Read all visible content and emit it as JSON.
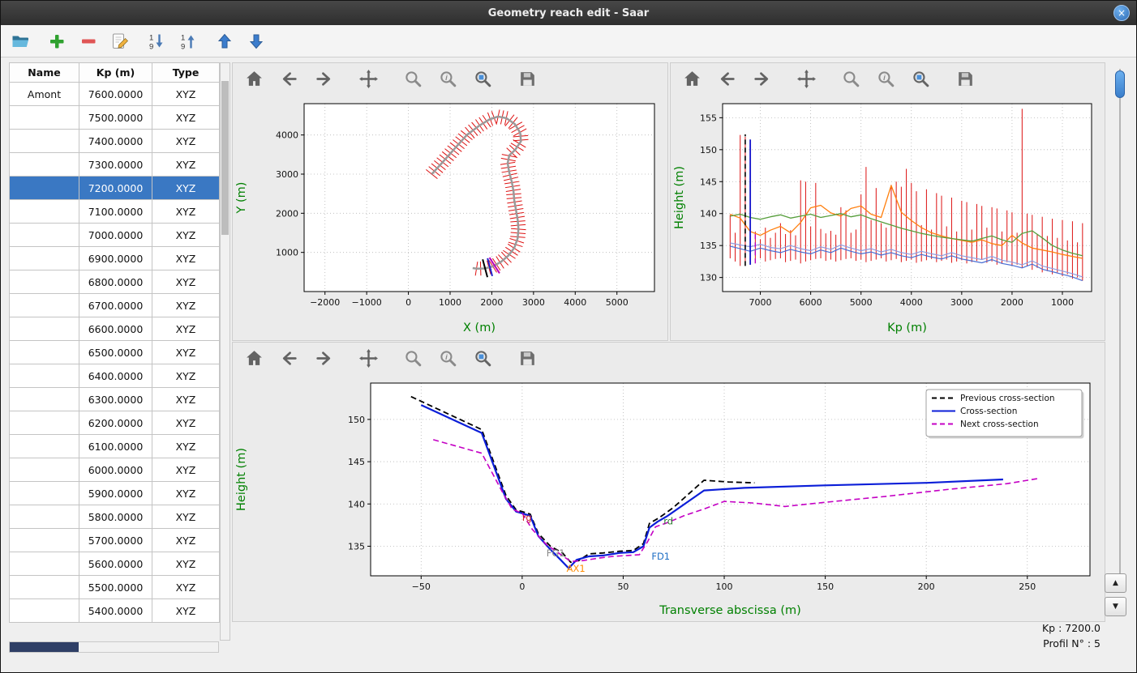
{
  "window": {
    "title": "Geometry reach edit - Saar",
    "close_glyph": "×"
  },
  "app_toolbar": {
    "icons": [
      "open-folder-icon",
      "add-icon",
      "remove-icon",
      "edit-icon",
      "sort-descending-icon",
      "sort-ascending-icon",
      "move-up-icon",
      "move-down-icon"
    ]
  },
  "plot_toolbar": {
    "icons": [
      "home-icon",
      "back-icon",
      "forward-icon",
      "pan-icon",
      "zoom-icon",
      "zoom-info-icon",
      "zoom-rect-icon",
      "save-icon"
    ]
  },
  "table": {
    "columns": [
      "Name",
      "Kp (m)",
      "Type"
    ],
    "selected_index": 4,
    "rows": [
      {
        "name": "Amont",
        "kp": "7600.0000",
        "type": "XYZ"
      },
      {
        "name": "",
        "kp": "7500.0000",
        "type": "XYZ"
      },
      {
        "name": "",
        "kp": "7400.0000",
        "type": "XYZ"
      },
      {
        "name": "",
        "kp": "7300.0000",
        "type": "XYZ"
      },
      {
        "name": "",
        "kp": "7200.0000",
        "type": "XYZ"
      },
      {
        "name": "",
        "kp": "7100.0000",
        "type": "XYZ"
      },
      {
        "name": "",
        "kp": "7000.0000",
        "type": "XYZ"
      },
      {
        "name": "",
        "kp": "6900.0000",
        "type": "XYZ"
      },
      {
        "name": "",
        "kp": "6800.0000",
        "type": "XYZ"
      },
      {
        "name": "",
        "kp": "6700.0000",
        "type": "XYZ"
      },
      {
        "name": "",
        "kp": "6600.0000",
        "type": "XYZ"
      },
      {
        "name": "",
        "kp": "6500.0000",
        "type": "XYZ"
      },
      {
        "name": "",
        "kp": "6400.0000",
        "type": "XYZ"
      },
      {
        "name": "",
        "kp": "6300.0000",
        "type": "XYZ"
      },
      {
        "name": "",
        "kp": "6200.0000",
        "type": "XYZ"
      },
      {
        "name": "",
        "kp": "6100.0000",
        "type": "XYZ"
      },
      {
        "name": "",
        "kp": "6000.0000",
        "type": "XYZ"
      },
      {
        "name": "",
        "kp": "5900.0000",
        "type": "XYZ"
      },
      {
        "name": "",
        "kp": "5800.0000",
        "type": "XYZ"
      },
      {
        "name": "",
        "kp": "5700.0000",
        "type": "XYZ"
      },
      {
        "name": "",
        "kp": "5600.0000",
        "type": "XYZ"
      },
      {
        "name": "",
        "kp": "5500.0000",
        "type": "XYZ"
      },
      {
        "name": "",
        "kp": "5400.0000",
        "type": "XYZ"
      }
    ]
  },
  "status": {
    "kp_label": "Kp : 7200.0",
    "profil_label": "Profil N° : 5"
  },
  "chart_data": [
    {
      "id": "plan",
      "type": "line",
      "xlabel": "X (m)",
      "ylabel": "Y (m)",
      "label_color": "#008000",
      "xlim": [
        -2500,
        5900
      ],
      "ylim": [
        0,
        4800
      ],
      "xticks": [
        -2000,
        -1000,
        0,
        1000,
        2000,
        3000,
        4000,
        5000
      ],
      "yticks": [
        1000,
        2000,
        3000,
        4000
      ],
      "centerline": [
        [
          560,
          3000
        ],
        [
          800,
          3280
        ],
        [
          1100,
          3640
        ],
        [
          1400,
          4000
        ],
        [
          1700,
          4240
        ],
        [
          1950,
          4400
        ],
        [
          2150,
          4470
        ],
        [
          2350,
          4430
        ],
        [
          2550,
          4280
        ],
        [
          2680,
          4060
        ],
        [
          2700,
          3840
        ],
        [
          2560,
          3620
        ],
        [
          2420,
          3480
        ],
        [
          2380,
          3280
        ],
        [
          2420,
          3040
        ],
        [
          2480,
          2800
        ],
        [
          2520,
          2560
        ],
        [
          2540,
          2320
        ],
        [
          2580,
          2080
        ],
        [
          2620,
          1840
        ],
        [
          2640,
          1600
        ],
        [
          2620,
          1360
        ],
        [
          2540,
          1120
        ],
        [
          2400,
          920
        ],
        [
          2220,
          760
        ],
        [
          2020,
          640
        ],
        [
          1820,
          590
        ],
        [
          1640,
          585
        ],
        [
          1540,
          600
        ]
      ],
      "tick_spacing": 100,
      "tick_half_len": 180,
      "tick_color": "#dd1111",
      "line_color": "#9a9a9a",
      "highlights": [
        {
          "from_end": 300,
          "color": "#000000"
        },
        {
          "from_end": 420,
          "color": "#2020cc"
        },
        {
          "from_end": 540,
          "color": "#bb00bb"
        }
      ]
    },
    {
      "id": "profile",
      "type": "line",
      "xlabel": "Kp (m)",
      "ylabel": "Height (m)",
      "label_color": "#008000",
      "xlim": [
        7750,
        420
      ],
      "ylim": [
        127.8,
        157.2
      ],
      "xticks": [
        7000,
        6000,
        5000,
        4000,
        3000,
        2000,
        1000
      ],
      "yticks": [
        130,
        135,
        140,
        145,
        150,
        155
      ],
      "bar_color": "#dd1111",
      "bars": [
        [
          7600,
          133.0,
          139.8
        ],
        [
          7500,
          132.5,
          137.0
        ],
        [
          7400,
          131.8,
          152.3
        ],
        [
          7300,
          131.9,
          152.0
        ],
        [
          7200,
          132.0,
          136.5
        ],
        [
          7100,
          132.8,
          137.2
        ],
        [
          7000,
          133.0,
          136.0
        ],
        [
          6900,
          132.5,
          137.8
        ],
        [
          6800,
          132.7,
          136.2
        ],
        [
          6700,
          132.9,
          137.0
        ],
        [
          6600,
          133.0,
          138.5
        ],
        [
          6500,
          132.4,
          136.8
        ],
        [
          6400,
          132.6,
          137.4
        ],
        [
          6300,
          132.8,
          136.6
        ],
        [
          6200,
          132.2,
          145.2
        ],
        [
          6100,
          132.5,
          145.0
        ],
        [
          6000,
          132.7,
          138.0
        ],
        [
          5900,
          132.9,
          144.8
        ],
        [
          5800,
          133.0,
          137.6
        ],
        [
          5700,
          132.6,
          136.9
        ],
        [
          5600,
          132.8,
          137.3
        ],
        [
          5500,
          132.5,
          136.7
        ],
        [
          5400,
          132.7,
          141.0
        ],
        [
          5300,
          132.9,
          140.5
        ],
        [
          5200,
          133.0,
          137.0
        ],
        [
          5100,
          132.6,
          137.5
        ],
        [
          5000,
          132.8,
          143.0
        ],
        [
          4900,
          132.4,
          147.3
        ],
        [
          4800,
          132.6,
          139.0
        ],
        [
          4700,
          132.8,
          144.0
        ],
        [
          4600,
          133.0,
          138.5
        ],
        [
          4500,
          132.5,
          137.8
        ],
        [
          4400,
          132.7,
          144.5
        ],
        [
          4300,
          132.9,
          145.0
        ],
        [
          4200,
          132.4,
          144.2
        ],
        [
          4100,
          132.6,
          147.0
        ],
        [
          4000,
          132.8,
          144.8
        ],
        [
          3900,
          132.3,
          143.5
        ],
        [
          3800,
          132.5,
          138.2
        ],
        [
          3700,
          132.7,
          143.8
        ],
        [
          3600,
          132.9,
          137.5
        ],
        [
          3500,
          132.4,
          143.2
        ],
        [
          3400,
          132.6,
          142.8
        ],
        [
          3300,
          132.8,
          138.0
        ],
        [
          3200,
          132.3,
          142.5
        ],
        [
          3100,
          132.5,
          137.2
        ],
        [
          3000,
          132.7,
          142.0
        ],
        [
          2900,
          132.2,
          141.8
        ],
        [
          2800,
          132.4,
          137.5
        ],
        [
          2700,
          132.6,
          141.5
        ],
        [
          2600,
          132.8,
          141.2
        ],
        [
          2500,
          132.3,
          137.8
        ],
        [
          2400,
          132.5,
          141.0
        ],
        [
          2300,
          132.0,
          140.8
        ],
        [
          2200,
          132.2,
          137.2
        ],
        [
          2100,
          132.4,
          140.5
        ],
        [
          2000,
          131.8,
          140.2
        ],
        [
          1900,
          132.0,
          137.0
        ],
        [
          1800,
          131.5,
          156.4
        ],
        [
          1700,
          131.8,
          140.0
        ],
        [
          1600,
          131.2,
          139.8
        ],
        [
          1500,
          131.5,
          136.8
        ],
        [
          1400,
          130.8,
          139.5
        ],
        [
          1300,
          131.0,
          136.5
        ],
        [
          1200,
          130.5,
          139.2
        ],
        [
          1100,
          130.8,
          136.2
        ],
        [
          1000,
          130.2,
          139.0
        ],
        [
          900,
          130.5,
          135.8
        ],
        [
          800,
          129.8,
          138.8
        ],
        [
          700,
          130.0,
          135.5
        ],
        [
          600,
          129.5,
          138.5
        ]
      ],
      "x": [
        7600,
        7400,
        7200,
        7000,
        6800,
        6600,
        6400,
        6200,
        6000,
        5800,
        5600,
        5400,
        5200,
        5000,
        4800,
        4600,
        4400,
        4200,
        4000,
        3800,
        3600,
        3400,
        3200,
        3000,
        2800,
        2600,
        2400,
        2200,
        2000,
        1800,
        1600,
        1400,
        1200,
        1000,
        800,
        600
      ],
      "series": [
        {
          "color": "#ff7f0e",
          "width": 1.3,
          "y": [
            139.9,
            139.3,
            137.2,
            136.6,
            137.4,
            138.0,
            137.0,
            138.6,
            140.9,
            141.3,
            140.1,
            139.6,
            140.8,
            141.2,
            139.9,
            139.4,
            144.4,
            140.2,
            138.9,
            137.8,
            137.0,
            136.5,
            136.1,
            135.8,
            135.5,
            135.9,
            135.3,
            135.0,
            136.6,
            135.4,
            134.6,
            134.3,
            134.0,
            133.6,
            133.3,
            133.0
          ]
        },
        {
          "color": "#579e3c",
          "width": 1.3,
          "y": [
            139.6,
            139.9,
            139.4,
            139.1,
            139.5,
            139.8,
            139.3,
            139.6,
            139.9,
            139.4,
            139.7,
            140.0,
            139.5,
            139.8,
            139.2,
            138.7,
            138.2,
            137.7,
            137.3,
            136.9,
            136.6,
            136.3,
            136.1,
            135.9,
            135.7,
            136.1,
            136.5,
            135.9,
            135.5,
            136.9,
            137.3,
            136.2,
            135.0,
            134.3,
            133.8,
            133.4
          ]
        },
        {
          "color": "#4a6fd4",
          "width": 1.2,
          "y": [
            134.9,
            134.5,
            134.1,
            134.6,
            134.2,
            133.9,
            134.4,
            134.0,
            133.7,
            134.3,
            133.9,
            134.6,
            134.1,
            133.7,
            134.0,
            133.5,
            133.9,
            133.4,
            133.1,
            133.6,
            133.2,
            132.9,
            133.4,
            132.9,
            132.6,
            132.3,
            132.8,
            132.2,
            131.9,
            131.5,
            132.1,
            131.3,
            130.9,
            130.5,
            130.1,
            129.5
          ]
        },
        {
          "color": "#8f9ce0",
          "width": 1.2,
          "y": [
            135.4,
            135.1,
            134.8,
            135.2,
            134.7,
            134.5,
            135.0,
            134.5,
            134.2,
            134.8,
            134.4,
            135.1,
            134.6,
            134.2,
            134.5,
            134.0,
            134.4,
            133.9,
            133.6,
            134.1,
            133.7,
            133.4,
            133.9,
            133.4,
            133.1,
            132.8,
            133.3,
            132.7,
            132.4,
            132.0,
            132.6,
            131.8,
            131.4,
            131.0,
            130.6,
            130.1
          ]
        }
      ],
      "vlines": [
        {
          "x": 7300,
          "y0": 131.8,
          "y1": 152.4,
          "color": "#000000",
          "dash": true,
          "width": 1.6
        },
        {
          "x": 7200,
          "y0": 132.0,
          "y1": 151.6,
          "color": "#1616cc",
          "dash": false,
          "width": 1.8
        },
        {
          "x": 7100,
          "y0": 132.2,
          "y1": 137.0,
          "color": "#bb00bb",
          "dash": true,
          "width": 1.4
        }
      ]
    },
    {
      "id": "cross",
      "type": "line",
      "xlabel": "Transverse abscissa (m)",
      "ylabel": "Height (m)",
      "label_color": "#008000",
      "xlim": [
        -75,
        281
      ],
      "ylim": [
        131.5,
        154.3
      ],
      "xticks": [
        -50,
        0,
        50,
        100,
        150,
        200,
        250
      ],
      "yticks": [
        135,
        140,
        145,
        150
      ],
      "legend": true,
      "series": [
        {
          "label": "Previous cross-section",
          "color": "#000000",
          "dash": true,
          "width": 1.8,
          "x": [
            -55,
            -20,
            -8,
            -3,
            0,
            4,
            8,
            14,
            20,
            24,
            28,
            33,
            40,
            48,
            55,
            60,
            63,
            68,
            75,
            90,
            102,
            115
          ],
          "y": [
            152.7,
            148.8,
            141.0,
            139.3,
            139.1,
            138.8,
            136.5,
            135.0,
            134.2,
            133.1,
            133.3,
            134.1,
            134.2,
            134.4,
            134.5,
            135.3,
            137.7,
            138.4,
            139.6,
            142.8,
            142.6,
            142.5
          ]
        },
        {
          "label": "Cross-section",
          "color": "#0b1ed8",
          "dash": false,
          "width": 2.2,
          "x": [
            -50,
            -20,
            -8,
            -3,
            0,
            4,
            8,
            14,
            19,
            23,
            27,
            33,
            40,
            48,
            55,
            60,
            63,
            67,
            72,
            90,
            110,
            150,
            200,
            238
          ],
          "y": [
            151.7,
            148.4,
            140.6,
            139.1,
            138.9,
            138.6,
            136.2,
            134.6,
            133.4,
            132.4,
            133.4,
            133.8,
            133.9,
            134.2,
            134.3,
            135.0,
            137.2,
            137.9,
            138.6,
            141.6,
            141.9,
            142.2,
            142.5,
            142.9
          ]
        },
        {
          "label": "Next cross-section",
          "color": "#c400c4",
          "dash": true,
          "width": 1.6,
          "x": [
            -44,
            -20,
            -10,
            -5,
            0,
            5,
            12,
            18,
            24,
            30,
            38,
            45,
            52,
            58,
            62,
            66,
            72,
            80,
            90,
            100,
            115,
            130,
            150,
            180,
            210,
            240,
            255
          ],
          "y": [
            147.6,
            146.0,
            141.5,
            139.4,
            138.9,
            137.0,
            135.2,
            134.2,
            133.2,
            133.3,
            133.6,
            133.8,
            133.9,
            134.0,
            135.5,
            137.3,
            137.8,
            138.6,
            139.4,
            140.3,
            140.1,
            139.7,
            140.2,
            140.9,
            141.7,
            142.4,
            143.0
          ]
        }
      ],
      "annotations": [
        {
          "text": "rg",
          "color": "#cc2222",
          "x": 0,
          "y": 138.0
        },
        {
          "text": "rd",
          "color": "#2e7d32",
          "x": 70,
          "y": 137.6
        },
        {
          "text": "FD1",
          "color": "#1f6fc4",
          "x": 64,
          "y": 133.4
        },
        {
          "text": "AX1",
          "color": "#ff8c00",
          "x": 22,
          "y": 132.0
        },
        {
          "text": "FG1",
          "color": "#888888",
          "x": 12,
          "y": 133.8
        }
      ]
    }
  ]
}
